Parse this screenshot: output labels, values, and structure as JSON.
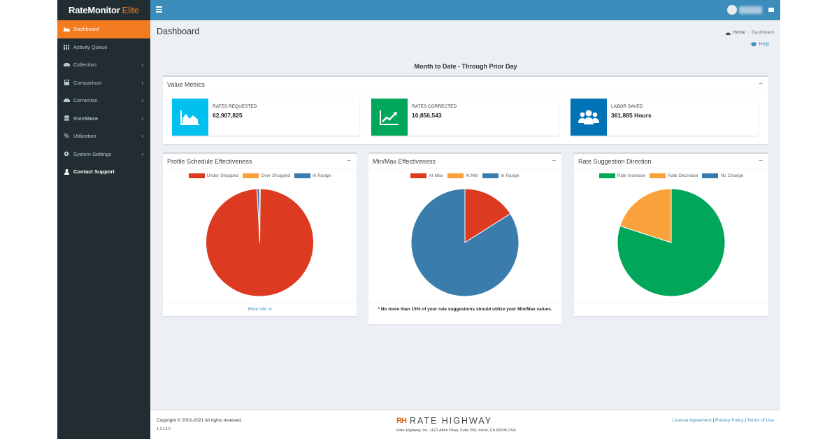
{
  "app": {
    "brand_main": "RateMonitor",
    "brand_suffix": "Elite"
  },
  "sidebar": {
    "items": [
      {
        "label": "Dashboard",
        "icon": "area-chart-icon"
      },
      {
        "label": "Activity Queue",
        "icon": "grid-icon"
      },
      {
        "label": "Collection",
        "icon": "car-icon"
      },
      {
        "label": "Comparison",
        "icon": "calculator-icon"
      },
      {
        "label": "Correction",
        "icon": "car-icon"
      },
      {
        "label_prefix": "Rate",
        "label_bold": "Store",
        "icon": "database-icon"
      },
      {
        "label": "Utilization",
        "icon": "percent-icon"
      },
      {
        "label": "System Settings",
        "icon": "gear-icon"
      },
      {
        "label": "Contact Support",
        "icon": "user-icon"
      }
    ]
  },
  "header": {
    "page_title": "Dashboard",
    "breadcrumb_home": "Home",
    "breadcrumb_current": "Dashboard",
    "help_label": "Help",
    "section_title": "Month to Date - Through Prior Day"
  },
  "value_metrics": {
    "title": "Value Metrics",
    "cards": [
      {
        "label": "RATES REQUESTED",
        "value": "62,907,825",
        "color": "#00c0ef",
        "icon": "area-chart-icon"
      },
      {
        "label": "RATES CORRECTED",
        "value": "10,856,543",
        "color": "#00a65a",
        "icon": "line-chart-icon"
      },
      {
        "label": "LABOR SAVED",
        "value": "361,885 Hours",
        "color": "#0073b7",
        "icon": "users-icon"
      }
    ]
  },
  "chart_data": [
    {
      "type": "pie",
      "title": "Profile Schedule Effectiveness",
      "categories": [
        "Under Shopped",
        "Over Shopped",
        "In Range"
      ],
      "values": [
        99.0,
        0.2,
        0.8
      ],
      "colors": [
        "#dd3a22",
        "#f9a23c",
        "#3a7dad"
      ],
      "start": "In Range slice just left of top, Under Shopped covering nearly the full circle"
    },
    {
      "type": "pie",
      "title": "Min/Max Effectiveness",
      "categories": [
        "At Max",
        "At Min",
        "In Range"
      ],
      "values": [
        16,
        0,
        84
      ],
      "colors": [
        "#dd3a22",
        "#f9a23c",
        "#3a7dad"
      ]
    },
    {
      "type": "pie",
      "title": "Rate Suggestion Direction",
      "categories": [
        "Rate Increase",
        "Rate Decrease",
        "No Change"
      ],
      "values": [
        80,
        20,
        0
      ],
      "colors": [
        "#00a65a",
        "#f9a23c",
        "#3a7dad"
      ]
    }
  ],
  "panels": {
    "profile_footer": "More info",
    "minmax_note": "* No more than 15% of your rate suggestions should utilize your Min/Max values."
  },
  "footer": {
    "copyright": "Copyright © 2001-2021 All rights reserved.",
    "version": "1.2.13.0",
    "brand_mark": "RH",
    "brand_name": "RATE HIGHWAY",
    "address": "Rate-Highway, Inc, 1621 Alton Pkwy, Suite 250, Irvine, CA 92606 USA",
    "links": [
      "License Agreement",
      "Privacy Policy",
      "Terms of Use"
    ]
  }
}
